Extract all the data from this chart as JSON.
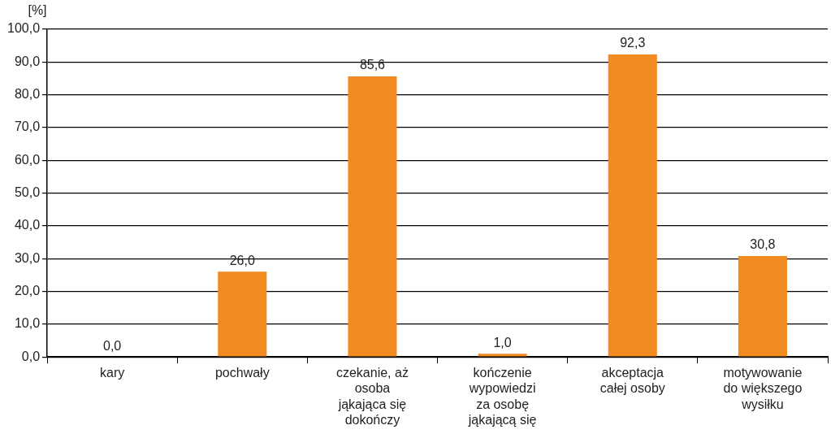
{
  "chart_data": {
    "type": "bar",
    "ylabel": "[%]",
    "categories": [
      "kary",
      "pochwały",
      "czekanie, aż osoba jąkająca się dokończy",
      "kończenie wypowiedzi za osobę jąkającą się",
      "akceptacja całej osoby",
      "motywowanie do większego wysiłku"
    ],
    "values": [
      0.0,
      26.0,
      85.6,
      1.0,
      92.3,
      30.8
    ],
    "value_labels": [
      "0,0",
      "26,0",
      "85,6",
      "1,0",
      "92,3",
      "30,8"
    ],
    "color": "#f28a22",
    "ylim": [
      0,
      100
    ],
    "yticks": [
      {
        "value": 0,
        "label": "0,0"
      },
      {
        "value": 10,
        "label": "10,0"
      },
      {
        "value": 20,
        "label": "20,0"
      },
      {
        "value": 30,
        "label": "30,0"
      },
      {
        "value": 40,
        "label": "40,0"
      },
      {
        "value": 50,
        "label": "50,0"
      },
      {
        "value": 60,
        "label": "60,0"
      },
      {
        "value": 70,
        "label": "70,0"
      },
      {
        "value": 80,
        "label": "80,0"
      },
      {
        "value": 90,
        "label": "90,0"
      },
      {
        "value": 100,
        "label": "100,0"
      }
    ],
    "grid": "y",
    "legend": false
  }
}
